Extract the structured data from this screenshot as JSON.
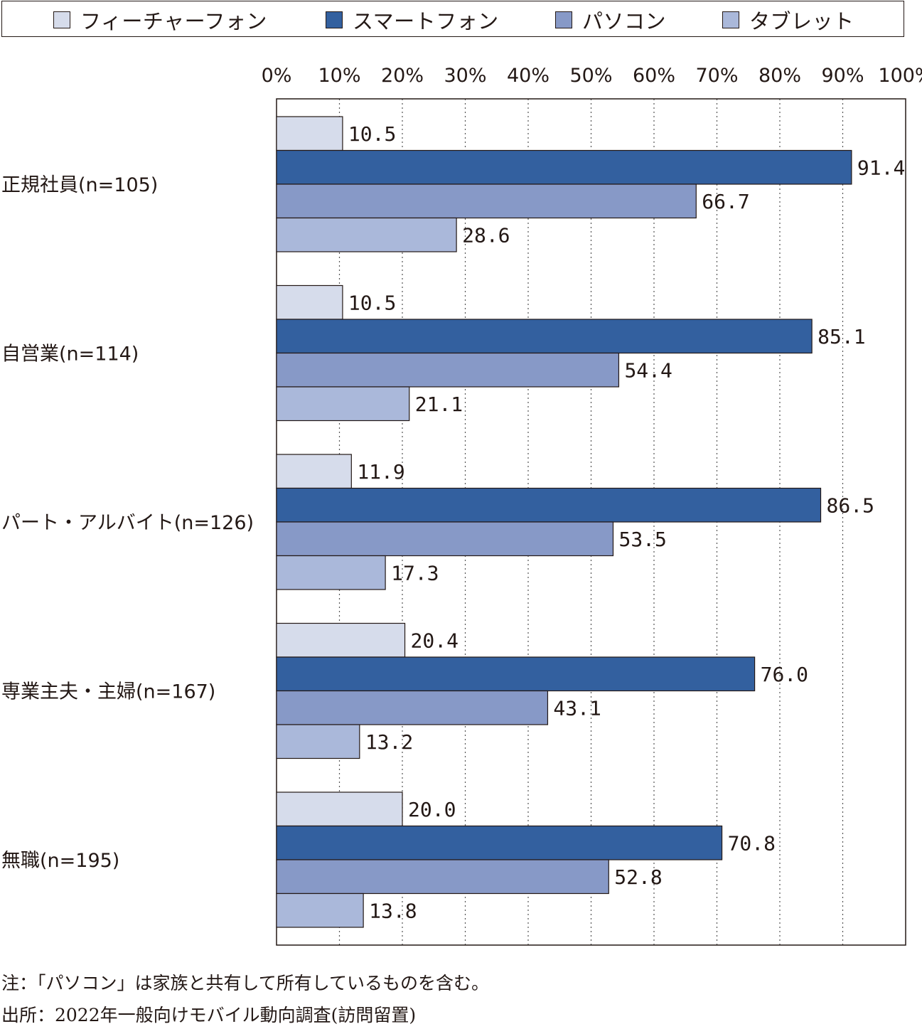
{
  "legend": [
    {
      "name": "フィーチャーフォン",
      "color": "#d6dceb"
    },
    {
      "name": "スマートフォン",
      "color": "#33609f"
    },
    {
      "name": "パソコン",
      "color": "#8799c7"
    },
    {
      "name": "タブレット",
      "color": "#aab8da"
    }
  ],
  "chart_data": {
    "type": "bar",
    "orientation": "horizontal",
    "categories": [
      "正規社員(n=105)",
      "自営業(n=114)",
      "パート・アルバイト(n=126)",
      "専業主夫・主婦(n=167)",
      "無職(n=195)"
    ],
    "series": [
      {
        "name": "フィーチャーフォン",
        "values": [
          10.5,
          10.5,
          11.9,
          20.4,
          20.0
        ],
        "labels": [
          "10.5",
          "10.5",
          "11.9",
          "20.4",
          "20.0"
        ]
      },
      {
        "name": "スマートフォン",
        "values": [
          91.4,
          85.1,
          86.5,
          76.0,
          70.8
        ],
        "labels": [
          "91.4",
          "85.1",
          "86.5",
          "76.0",
          "70.8"
        ]
      },
      {
        "name": "パソコン",
        "values": [
          66.7,
          54.4,
          53.5,
          43.1,
          52.8
        ],
        "labels": [
          "66.7",
          "54.4",
          "53.5",
          "43.1",
          "52.8"
        ]
      },
      {
        "name": "タブレット",
        "values": [
          28.6,
          21.1,
          17.3,
          13.2,
          13.8
        ],
        "labels": [
          "28.6",
          "21.1",
          "17.3",
          "13.2",
          "13.8"
        ]
      }
    ],
    "xlim": [
      0,
      100
    ],
    "xticks": [
      "0%",
      "10%",
      "20%",
      "30%",
      "40%",
      "50%",
      "60%",
      "70%",
      "80%",
      "90%",
      "100%"
    ],
    "grid": "vertical dotted",
    "legend_position": "top"
  },
  "notes": {
    "note": "注：「パソコン」は家族と共有して所有しているものを含む。",
    "source": "出所：2022年一般向けモバイル動向調査(訪問留置)"
  }
}
